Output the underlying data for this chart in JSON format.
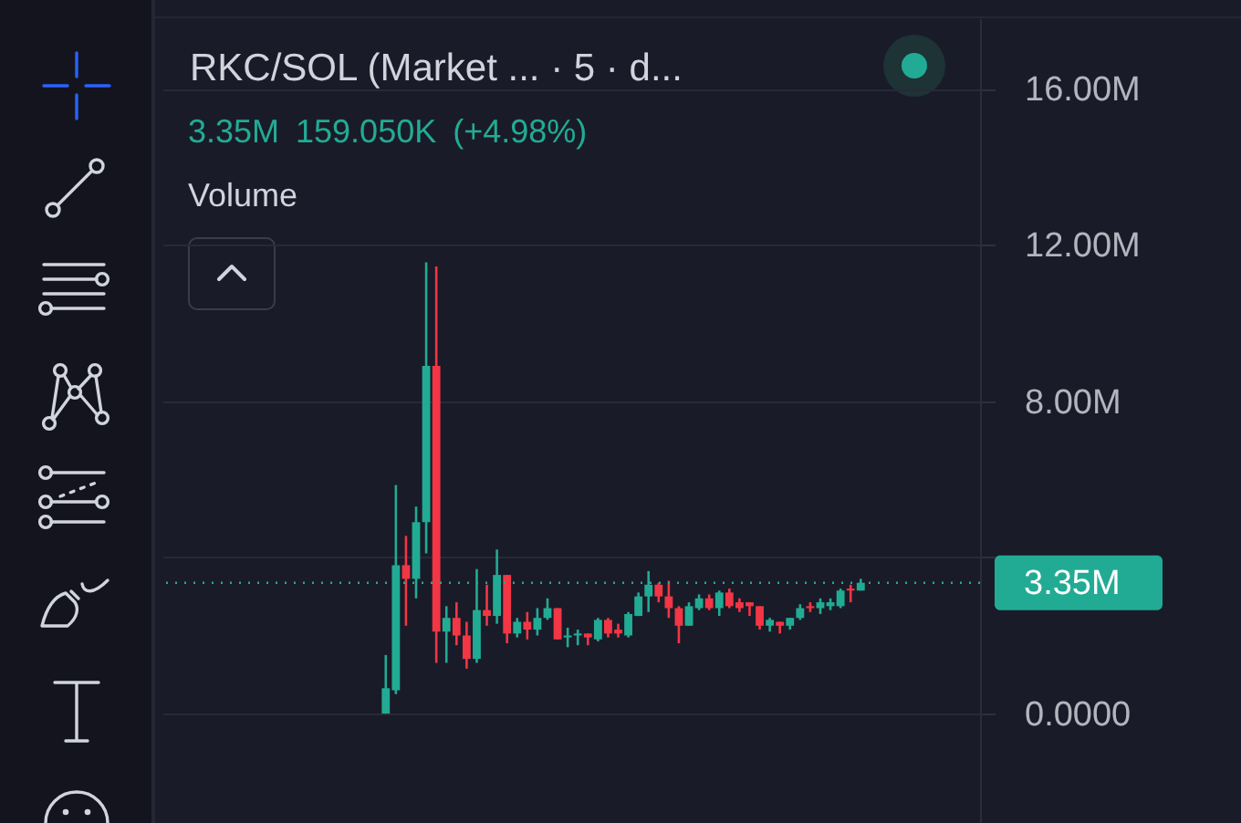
{
  "chart_data": {
    "type": "candlestick",
    "title": "RKC/SOL (Market ... · 5 · d...",
    "subtitle": "3.35M 159.050K (+4.98%)",
    "annotations": [
      "Volume"
    ],
    "categories": [
      null,
      null,
      null,
      null,
      null,
      null,
      null,
      null,
      null,
      null,
      null,
      null,
      null,
      null,
      null,
      null,
      null,
      null,
      null,
      null,
      null,
      null,
      null,
      null,
      null,
      null,
      null,
      null,
      null,
      null,
      null,
      null,
      null,
      null,
      null,
      null,
      null,
      null,
      null,
      null,
      null,
      null,
      null,
      null,
      null,
      null,
      null,
      null
    ],
    "ohlc": [
      [
        0,
        1500000,
        0,
        650000
      ],
      [
        600000,
        5850000,
        500000,
        3800000
      ],
      [
        3800000,
        4550000,
        2250000,
        3450000
      ],
      [
        3450000,
        5300000,
        2950000,
        4900000
      ],
      [
        4900000,
        11550000,
        4100000,
        8900000
      ],
      [
        8900000,
        11450000,
        1300000,
        2100000
      ],
      [
        2100000,
        2750000,
        1300000,
        2450000
      ],
      [
        2450000,
        2850000,
        1750000,
        2000000
      ],
      [
        2000000,
        2350000,
        1150000,
        1400000
      ],
      [
        1400000,
        3700000,
        1300000,
        2650000
      ],
      [
        2650000,
        3300000,
        2250000,
        2500000
      ],
      [
        2500000,
        4200000,
        2300000,
        3550000
      ],
      [
        3550000,
        3550000,
        1800000,
        2050000
      ],
      [
        2050000,
        2450000,
        1950000,
        2350000
      ],
      [
        2350000,
        2600000,
        1900000,
        2150000
      ],
      [
        2150000,
        2700000,
        2000000,
        2450000
      ],
      [
        2450000,
        2950000,
        2400000,
        2700000
      ],
      [
        2700000,
        2700000,
        1900000,
        1900000
      ],
      [
        1950000,
        2200000,
        1700000,
        2000000
      ],
      [
        2000000,
        2150000,
        1750000,
        2050000
      ],
      [
        2050000,
        2050000,
        1750000,
        1950000
      ],
      [
        1900000,
        2450000,
        1850000,
        2400000
      ],
      [
        2400000,
        2450000,
        1950000,
        2050000
      ],
      [
        2150000,
        2300000,
        1950000,
        2050000
      ],
      [
        2000000,
        2600000,
        1950000,
        2550000
      ],
      [
        2500000,
        3100000,
        2500000,
        3000000
      ],
      [
        3000000,
        3650000,
        2600000,
        3300000
      ],
      [
        3300000,
        3350000,
        2850000,
        3000000
      ],
      [
        3000000,
        3400000,
        2450000,
        2700000
      ],
      [
        2700000,
        2750000,
        1800000,
        2250000
      ],
      [
        2250000,
        2850000,
        2250000,
        2750000
      ],
      [
        2700000,
        3050000,
        2650000,
        2950000
      ],
      [
        2950000,
        3050000,
        2650000,
        2700000
      ],
      [
        2700000,
        3150000,
        2500000,
        3100000
      ],
      [
        3100000,
        3200000,
        2700000,
        2750000
      ],
      [
        2850000,
        2950000,
        2600000,
        2700000
      ],
      [
        2850000,
        2850000,
        2500000,
        2750000
      ],
      [
        2750000,
        2750000,
        2150000,
        2250000
      ],
      [
        2250000,
        2450000,
        2100000,
        2400000
      ],
      [
        2350000,
        2350000,
        2050000,
        2250000
      ],
      [
        2250000,
        2450000,
        2150000,
        2450000
      ],
      [
        2450000,
        2800000,
        2400000,
        2700000
      ],
      [
        2750000,
        2850000,
        2600000,
        2700000
      ],
      [
        2700000,
        2950000,
        2550000,
        2850000
      ],
      [
        2750000,
        2950000,
        2650000,
        2850000
      ],
      [
        2750000,
        3200000,
        2700000,
        3150000
      ],
      [
        3200000,
        3300000,
        2850000,
        3150000
      ],
      [
        3150000,
        3450000,
        3150000,
        3350000
      ]
    ],
    "colors": [
      "#22ab94",
      "#22ab94",
      "#f23645",
      "#22ab94",
      "#22ab94",
      "#f23645",
      "#22ab94",
      "#f23645",
      "#f23645",
      "#22ab94",
      "#f23645",
      "#22ab94",
      "#f23645",
      "#22ab94",
      "#f23645",
      "#22ab94",
      "#22ab94",
      "#f23645",
      "#22ab94",
      "#22ab94",
      "#f23645",
      "#22ab94",
      "#f23645",
      "#f23645",
      "#22ab94",
      "#22ab94",
      "#22ab94",
      "#f23645",
      "#f23645",
      "#f23645",
      "#22ab94",
      "#22ab94",
      "#f23645",
      "#22ab94",
      "#f23645",
      "#f23645",
      "#f23645",
      "#f23645",
      "#22ab94",
      "#f23645",
      "#22ab94",
      "#22ab94",
      "#f23645",
      "#22ab94",
      "#22ab94",
      "#22ab94",
      "#f23645",
      "#22ab94"
    ],
    "ylim": [
      -2800000,
      17800000
    ],
    "yticks": [
      {
        "value": 0,
        "label": "0.0000"
      },
      {
        "value": 4000000,
        "label": null
      },
      {
        "value": 8000000,
        "label": "8.00M"
      },
      {
        "value": 12000000,
        "label": "12.00M"
      },
      {
        "value": 16000000,
        "label": "16.00M"
      }
    ],
    "grid": "y",
    "tick_labels": "y",
    "ref_lines": [
      {
        "axis": "y",
        "value": 3350000,
        "label": "3.35M",
        "color": "#22ab94",
        "line_style": "dotted"
      }
    ]
  }
}
